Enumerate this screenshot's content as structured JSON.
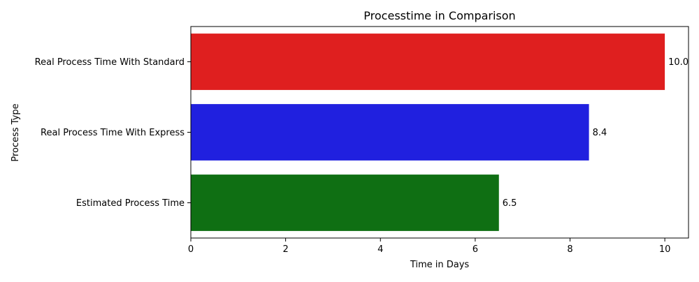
{
  "chart_data": {
    "type": "bar",
    "orientation": "horizontal",
    "title": "Processtime in Comparison",
    "xlabel": "Time in Days",
    "ylabel": "Process Type",
    "xlim": [
      0,
      10.5
    ],
    "xticks": [
      0,
      2,
      4,
      6,
      8,
      10
    ],
    "categories": [
      "Real Process Time With Standard",
      "Real Process Time With Express",
      "Estimated Process Time"
    ],
    "values": [
      10.0,
      8.4,
      6.5
    ],
    "data_labels": [
      "10.0",
      "8.4",
      "6.5"
    ],
    "colors": [
      "#df1f1f",
      "#2020df",
      "#0f6f13"
    ],
    "grid": false,
    "legend": "none"
  }
}
